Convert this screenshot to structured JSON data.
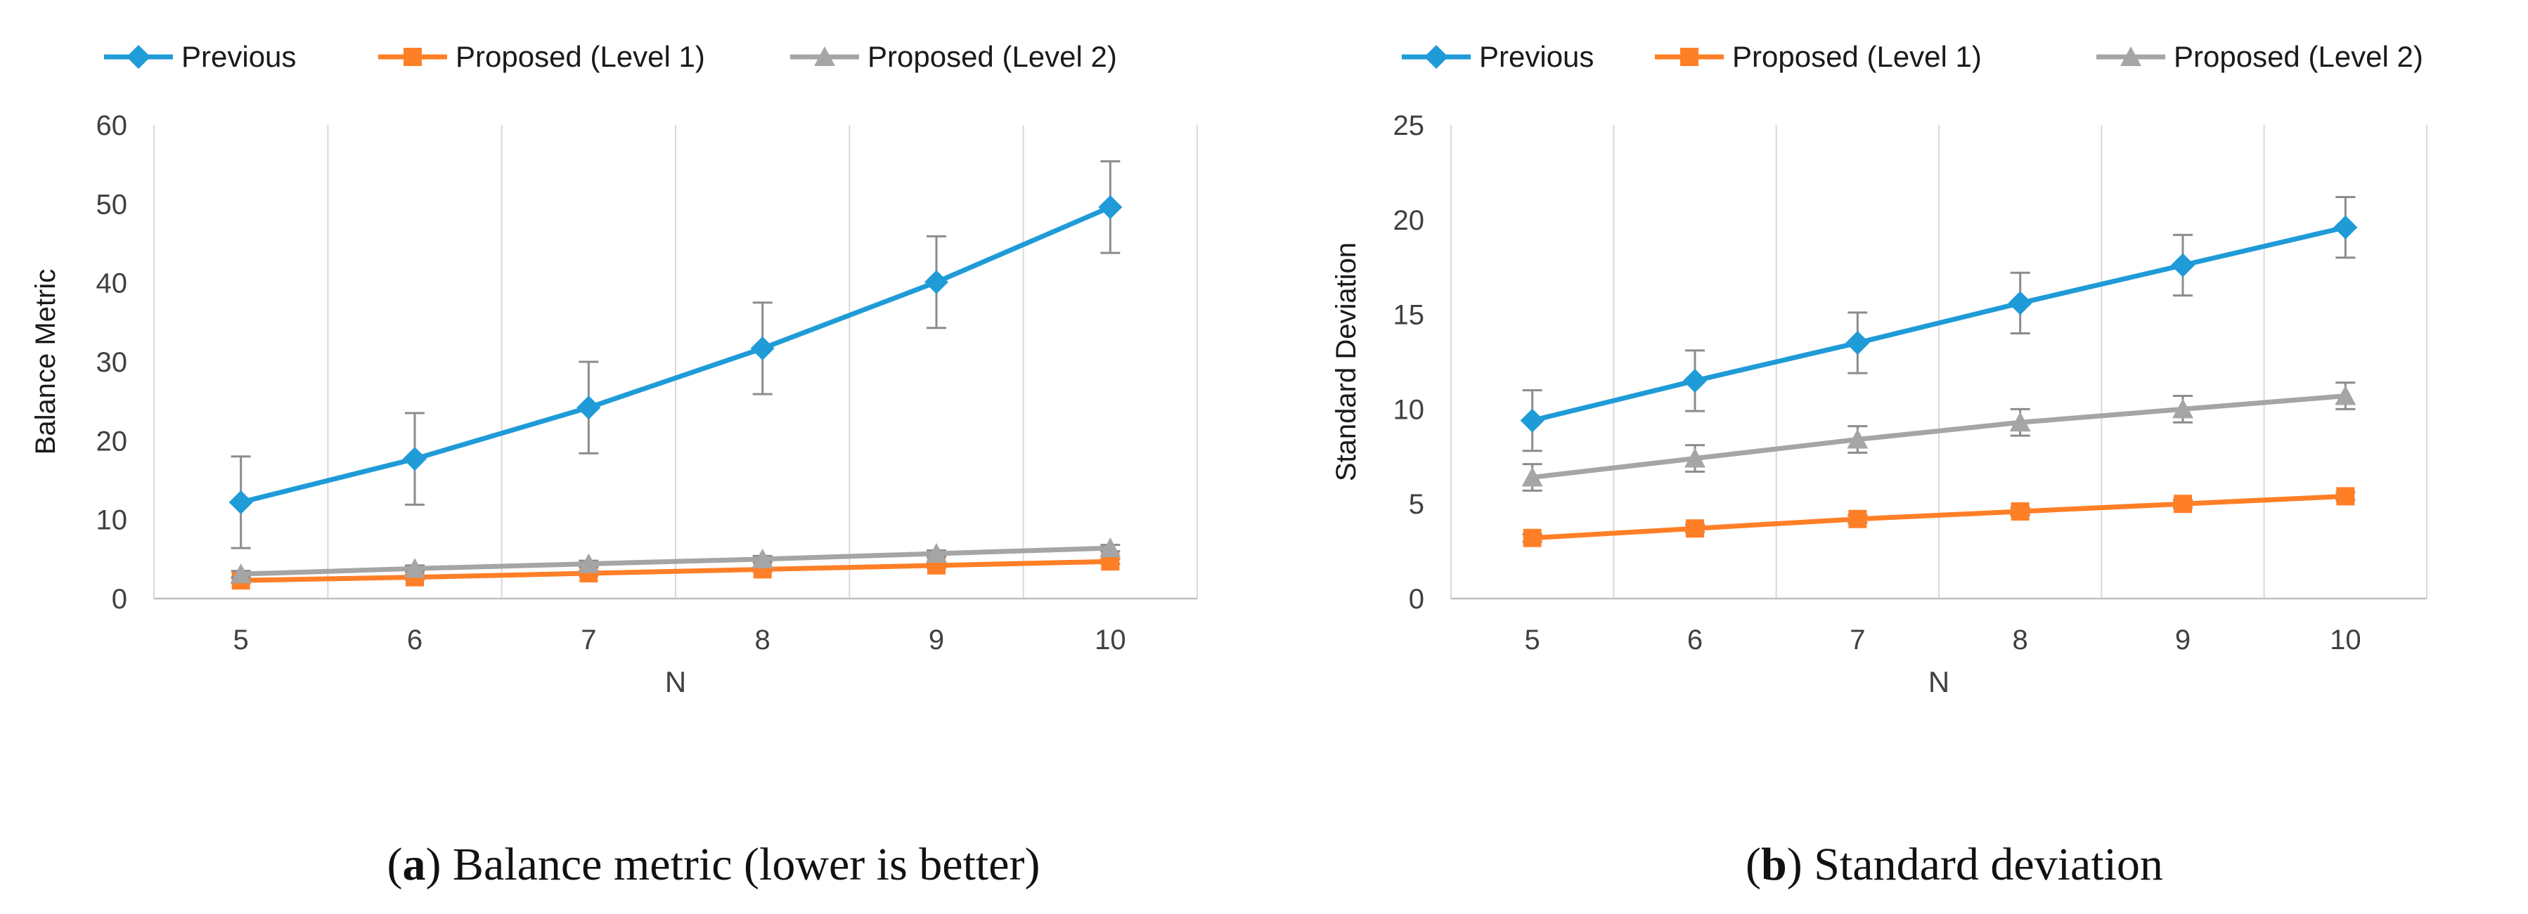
{
  "chart_data": [
    {
      "type": "line",
      "legend": [
        "Previous",
        "Proposed (Level 1)",
        "Proposed (Level 2)"
      ],
      "xlabel": "N",
      "ylabel": "Balance Metric",
      "categories": [
        "5",
        "6",
        "7",
        "8",
        "9",
        "10"
      ],
      "ylim": [
        0,
        60
      ],
      "yticks": [
        "0",
        "10",
        "20",
        "30",
        "40",
        "50",
        "60"
      ],
      "series": [
        {
          "name": "Previous",
          "color": "#1F9BD7",
          "marker": "diamond",
          "values": [
            12.2,
            17.7,
            24.2,
            31.7,
            40.1,
            49.6
          ],
          "errors": [
            5.8,
            5.8,
            5.8,
            5.8,
            5.8,
            5.8
          ]
        },
        {
          "name": "Proposed (Level 1)",
          "color": "#FF7F27",
          "marker": "square",
          "values": [
            2.3,
            2.7,
            3.2,
            3.7,
            4.2,
            4.7
          ],
          "errors": [
            0.3,
            0.3,
            0.3,
            0.3,
            0.3,
            0.3
          ]
        },
        {
          "name": "Proposed (Level 2)",
          "color": "#A5A5A5",
          "marker": "triangle",
          "values": [
            3.1,
            3.8,
            4.4,
            5.0,
            5.7,
            6.4
          ],
          "errors": [
            0.4,
            0.4,
            0.4,
            0.4,
            0.4,
            0.4
          ]
        }
      ],
      "caption_letter": "a",
      "caption_text": "Balance metric (lower is better)"
    },
    {
      "type": "line",
      "legend": [
        "Previous",
        "Proposed (Level 1)",
        "Proposed (Level 2)"
      ],
      "xlabel": "N",
      "ylabel": "Standard Deviation",
      "categories": [
        "5",
        "6",
        "7",
        "8",
        "9",
        "10"
      ],
      "ylim": [
        0,
        25
      ],
      "yticks": [
        "0",
        "5",
        "10",
        "15",
        "20",
        "25"
      ],
      "series": [
        {
          "name": "Previous",
          "color": "#1F9BD7",
          "marker": "diamond",
          "values": [
            9.4,
            11.5,
            13.5,
            15.6,
            17.6,
            19.6
          ],
          "errors": [
            1.6,
            1.6,
            1.6,
            1.6,
            1.6,
            1.6
          ]
        },
        {
          "name": "Proposed (Level 1)",
          "color": "#FF7F27",
          "marker": "square",
          "values": [
            3.2,
            3.7,
            4.2,
            4.6,
            5.0,
            5.4
          ],
          "errors": [
            0.2,
            0.2,
            0.2,
            0.2,
            0.2,
            0.2
          ]
        },
        {
          "name": "Proposed (Level 2)",
          "color": "#A5A5A5",
          "marker": "triangle",
          "values": [
            6.4,
            7.4,
            8.4,
            9.3,
            10.0,
            10.7
          ],
          "errors": [
            0.7,
            0.7,
            0.7,
            0.7,
            0.7,
            0.7
          ]
        }
      ],
      "caption_letter": "b",
      "caption_text": "Standard deviation"
    }
  ]
}
